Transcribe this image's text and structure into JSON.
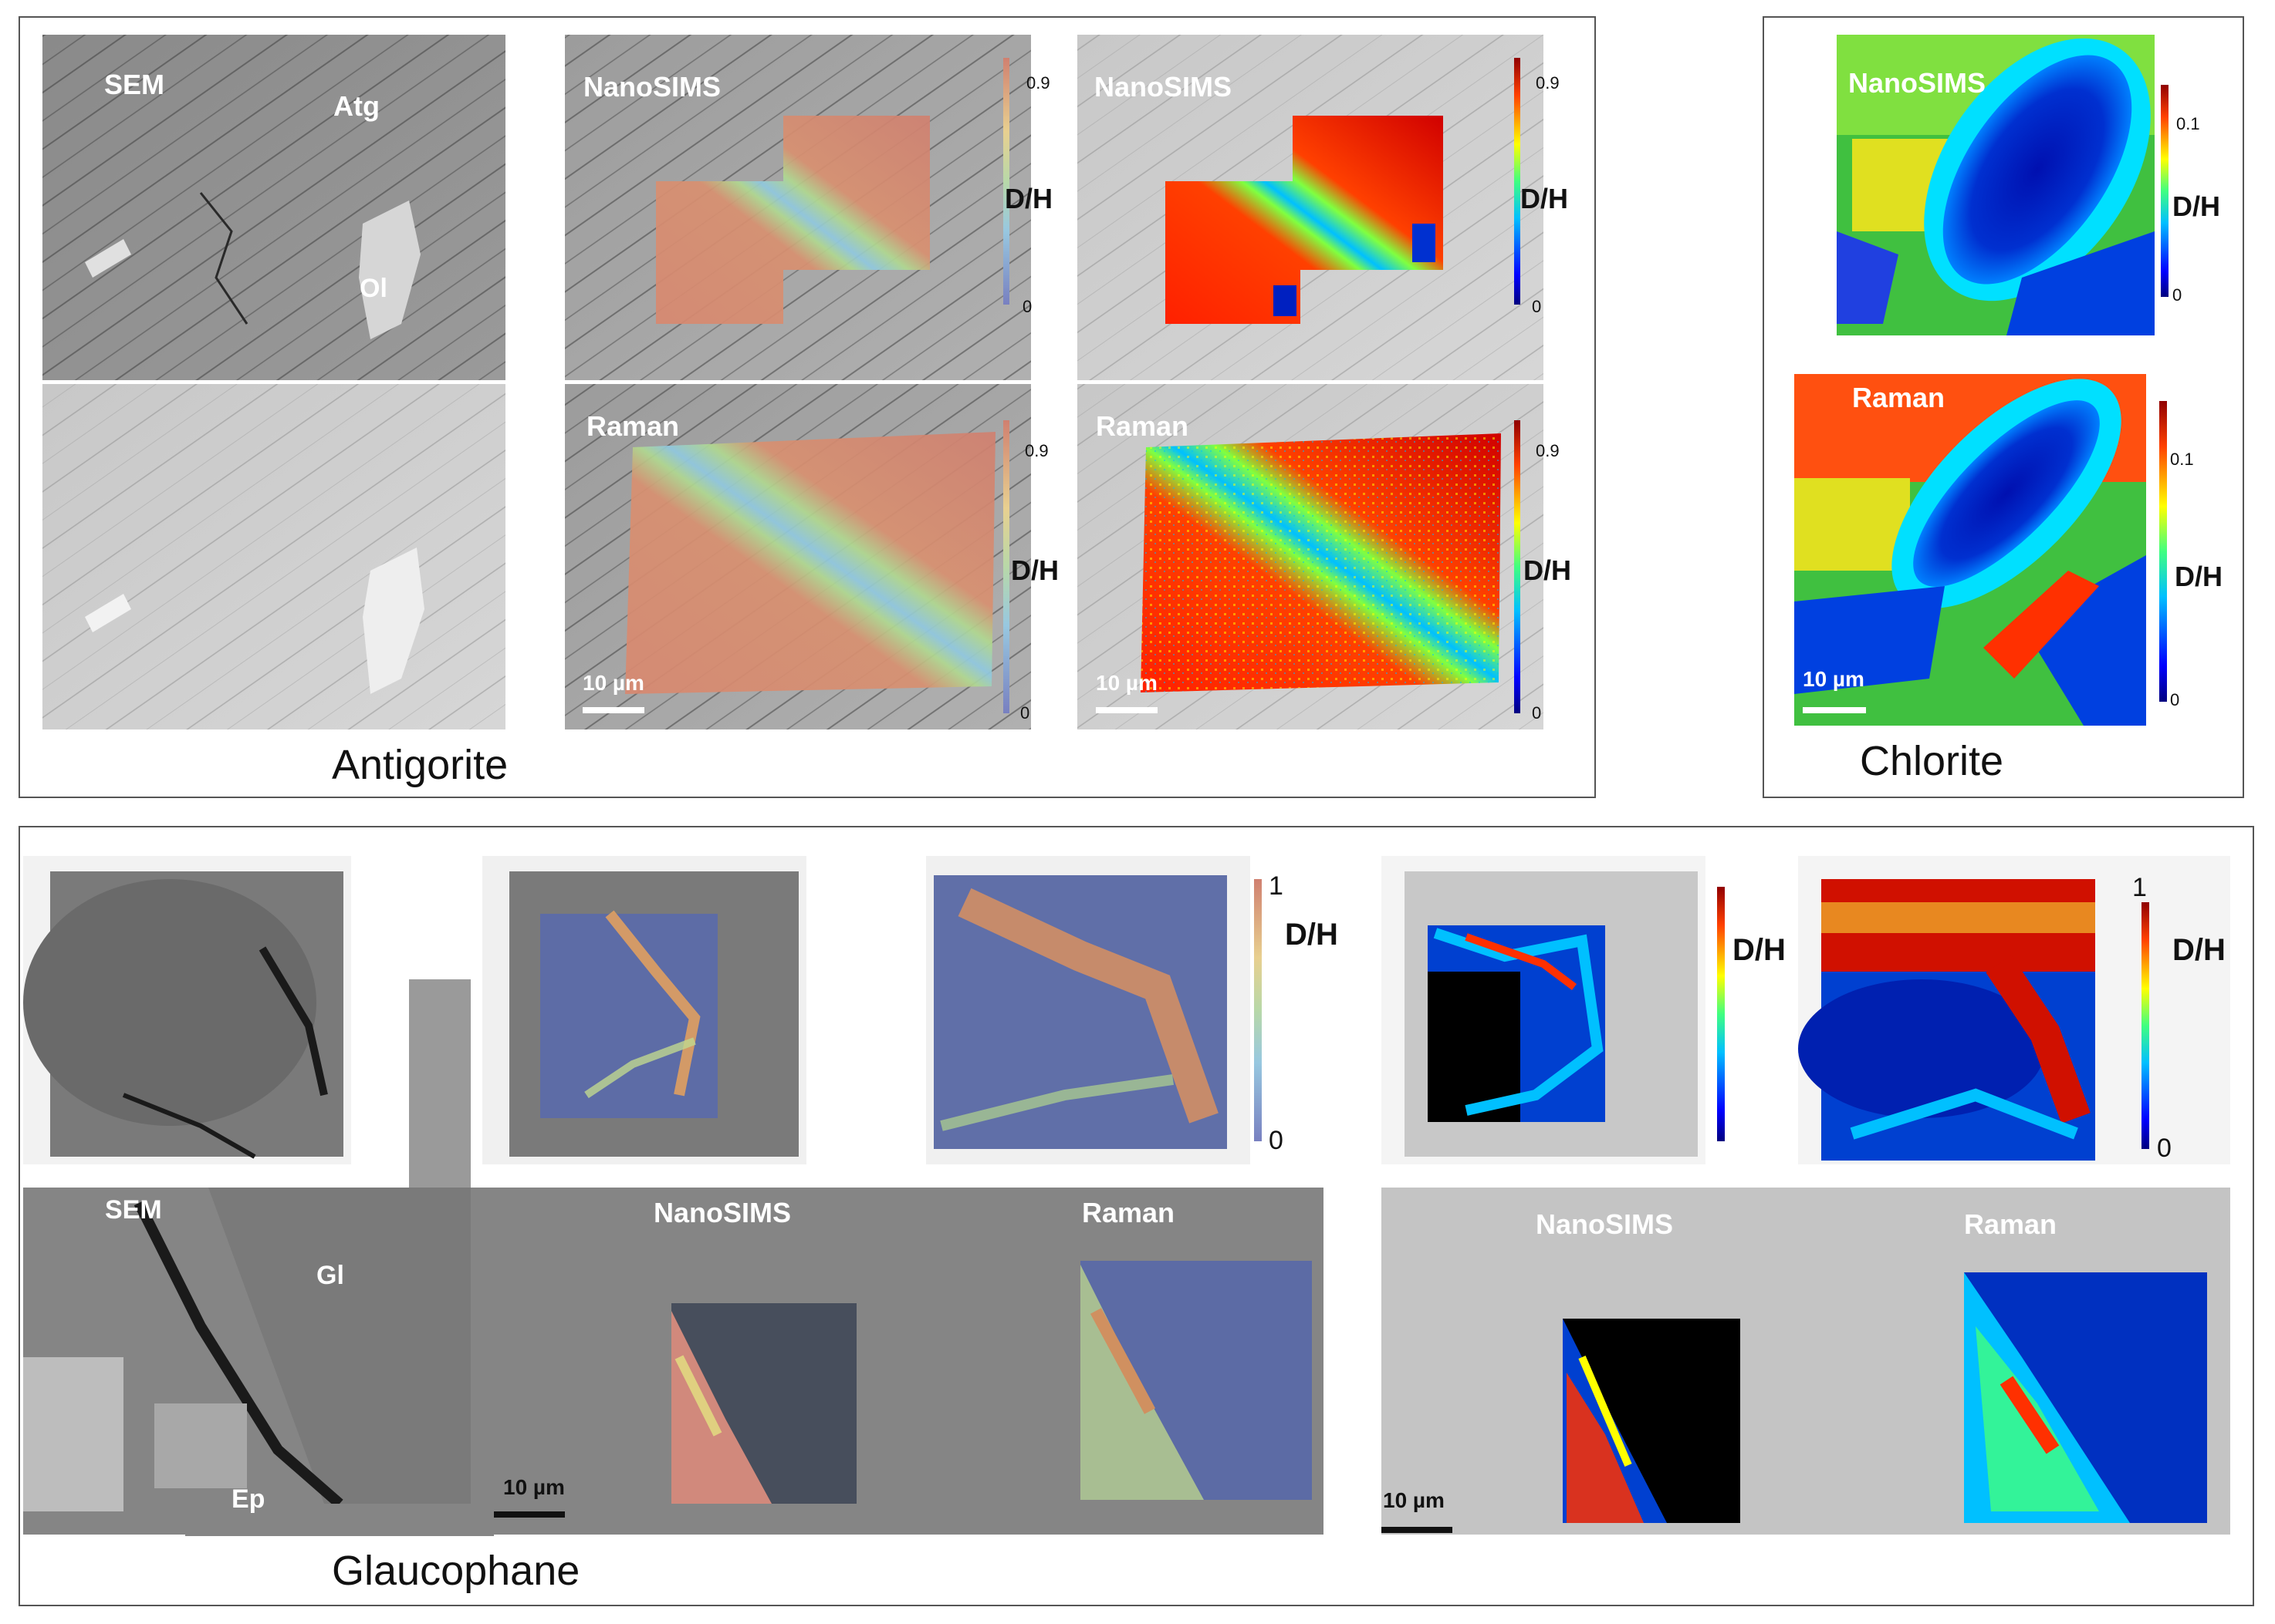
{
  "antigorite": {
    "caption": "Antigorite",
    "sem_label": "SEM",
    "atg_label": "Atg",
    "ol_label": "Ol",
    "nanosims_label_1": "NanoSIMS",
    "nanosims_label_2": "NanoSIMS",
    "raman_label_1": "Raman",
    "raman_label_2": "Raman",
    "scale_1": "10 µm",
    "scale_2": "10 µm",
    "cb_max_1": "0.9",
    "cb_min_1": "0",
    "cb_label_1": "D/H",
    "cb_max_2": "0.9",
    "cb_min_2": "0",
    "cb_label_2": "D/H",
    "cb_max_3": "0.9",
    "cb_min_3": "0",
    "cb_label_3": "D/H",
    "cb_max_4": "0.9",
    "cb_min_4": "0",
    "cb_label_4": "D/H"
  },
  "chlorite": {
    "caption": "Chlorite",
    "nanosims_label": "NanoSIMS",
    "raman_label": "Raman",
    "scale": "10 µm",
    "cb_max_1": "0.1",
    "cb_min_1": "0",
    "cb_label_1": "D/H",
    "cb_max_2": "0.1",
    "cb_min_2": "0",
    "cb_label_2": "D/H"
  },
  "glaucophane": {
    "caption": "Glaucophane",
    "sem_label": "SEM",
    "gl_label": "Gl",
    "ep_label": "Ep",
    "nanosims_label_1": "NanoSIMS",
    "raman_label_1": "Raman",
    "nanosims_label_2": "NanoSIMS",
    "raman_label_2": "Raman",
    "scale_1": "10 µm",
    "scale_2": "10 µm",
    "cb_max_1": "1",
    "cb_min_1": "0",
    "cb_label_1": "D/H",
    "cb_max_2": "1",
    "cb_min_2": "0",
    "cb_label_2": "D/H"
  },
  "colors": {
    "jet": [
      "#00007f",
      "#0000ff",
      "#0080ff",
      "#00ffff",
      "#80ff80",
      "#ffff00",
      "#ff8000",
      "#ff0000",
      "#7f0000"
    ],
    "faded": [
      "#8a90c8",
      "#9fb8e0",
      "#a8d8d8",
      "#c8e0a8",
      "#e8d8a0",
      "#e8b898",
      "#e09080"
    ]
  }
}
